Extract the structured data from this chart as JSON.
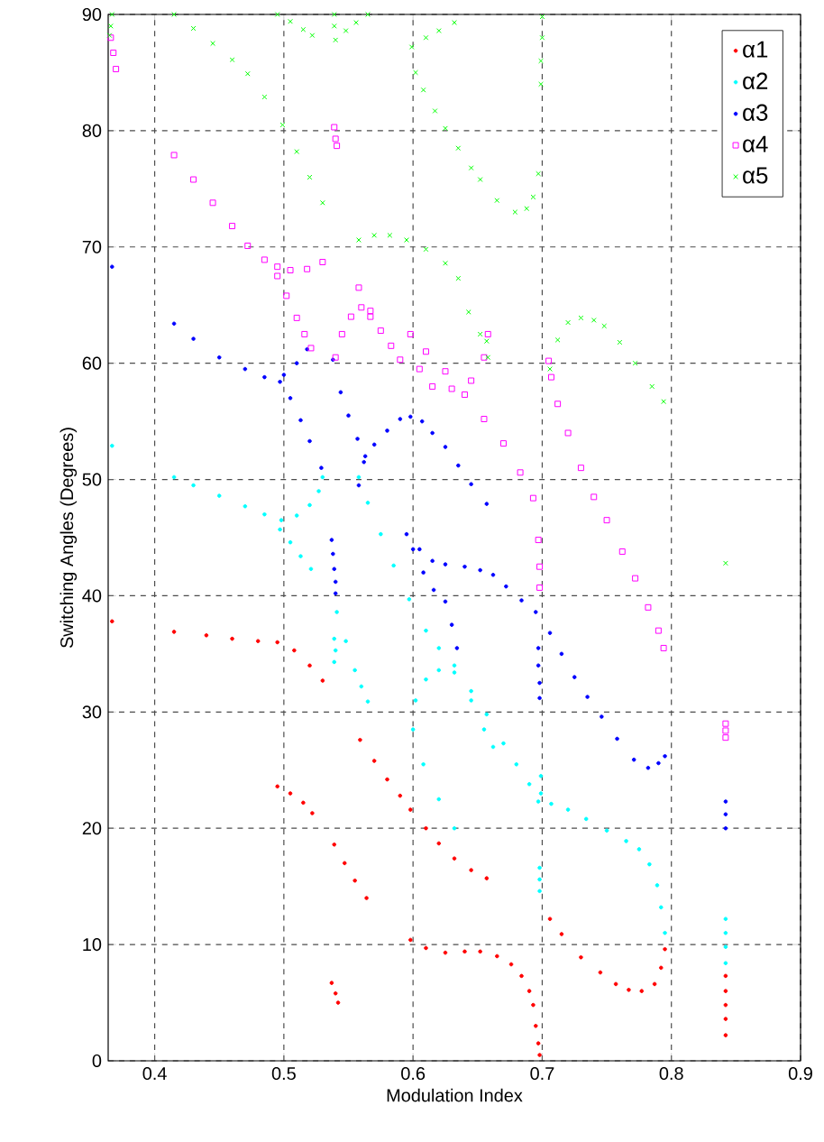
{
  "chart_data": {
    "type": "scatter",
    "xlabel": "Modulation Index",
    "ylabel": "Switching Angles (Degrees)",
    "xlim": [
      0.364,
      0.9
    ],
    "ylim": [
      0,
      90
    ],
    "xticks": [
      0.4,
      0.5,
      0.6,
      0.7,
      0.8,
      0.9
    ],
    "yticks": [
      0,
      10,
      20,
      30,
      40,
      50,
      60,
      70,
      80,
      90
    ],
    "grid": true,
    "legend": "top right",
    "series": [
      {
        "name": "α1",
        "color": "#ff0000",
        "marker": "circle",
        "x": [
          0.367,
          0.415,
          0.44,
          0.46,
          0.48,
          0.495,
          0.508,
          0.52,
          0.53,
          0.495,
          0.505,
          0.515,
          0.522,
          0.539,
          0.547,
          0.555,
          0.564,
          0.537,
          0.54,
          0.542,
          0.559,
          0.57,
          0.58,
          0.59,
          0.598,
          0.61,
          0.62,
          0.632,
          0.645,
          0.657,
          0.598,
          0.61,
          0.625,
          0.64,
          0.652,
          0.665,
          0.676,
          0.684,
          0.69,
          0.693,
          0.695,
          0.697,
          0.698,
          0.706,
          0.715,
          0.73,
          0.745,
          0.757,
          0.767,
          0.777,
          0.787,
          0.792,
          0.795,
          0.842,
          0.842,
          0.842,
          0.842,
          0.842
        ],
        "values": [
          37.8,
          36.9,
          36.6,
          36.3,
          36.1,
          36.0,
          35.3,
          34.0,
          32.7,
          23.6,
          23.0,
          22.2,
          21.3,
          18.6,
          17.0,
          15.5,
          14.0,
          6.7,
          5.8,
          5.0,
          27.6,
          25.8,
          24.2,
          22.8,
          21.6,
          20.0,
          18.7,
          17.4,
          16.4,
          15.7,
          10.4,
          9.7,
          9.3,
          9.4,
          9.4,
          9.0,
          8.3,
          7.3,
          6.0,
          4.8,
          3.0,
          1.5,
          0.5,
          12.2,
          10.9,
          8.9,
          7.6,
          6.6,
          6.1,
          6.0,
          6.6,
          8.0,
          9.6,
          7.3,
          6.0,
          4.8,
          3.6,
          2.2
        ]
      },
      {
        "name": "α2",
        "color": "#00ffff",
        "marker": "circle",
        "x": [
          0.367,
          0.415,
          0.43,
          0.45,
          0.47,
          0.485,
          0.498,
          0.51,
          0.52,
          0.527,
          0.53,
          0.497,
          0.505,
          0.513,
          0.521,
          0.539,
          0.54,
          0.539,
          0.541,
          0.548,
          0.555,
          0.56,
          0.565,
          0.558,
          0.565,
          0.575,
          0.585,
          0.597,
          0.61,
          0.62,
          0.632,
          0.645,
          0.657,
          0.67,
          0.68,
          0.69,
          0.697,
          0.632,
          0.62,
          0.608,
          0.6,
          0.602,
          0.61,
          0.62,
          0.632,
          0.645,
          0.655,
          0.662,
          0.699,
          0.699,
          0.698,
          0.698,
          0.698,
          0.707,
          0.72,
          0.734,
          0.75,
          0.765,
          0.775,
          0.783,
          0.789,
          0.792,
          0.795,
          0.842,
          0.842,
          0.842,
          0.842
        ],
        "values": [
          52.9,
          50.2,
          49.5,
          48.6,
          47.7,
          47.0,
          46.5,
          46.9,
          47.8,
          49.0,
          50.2,
          45.7,
          44.6,
          43.4,
          42.3,
          36.3,
          35.3,
          34.3,
          38.6,
          36.1,
          33.6,
          32.2,
          30.9,
          50.2,
          48.0,
          45.3,
          42.6,
          39.7,
          37.0,
          35.5,
          34.0,
          31.8,
          29.8,
          27.3,
          25.5,
          23.8,
          22.3,
          20.0,
          22.5,
          25.5,
          28.5,
          31.0,
          32.8,
          33.6,
          33.4,
          31.0,
          28.5,
          27.0,
          24.5,
          23.0,
          16.6,
          15.6,
          14.6,
          22.1,
          21.6,
          20.8,
          19.8,
          18.9,
          18.2,
          16.9,
          15.1,
          13.2,
          11.0,
          12.2,
          11.0,
          9.8,
          8.4
        ]
      },
      {
        "name": "α3",
        "color": "#0000ff",
        "marker": "circle",
        "x": [
          0.367,
          0.415,
          0.43,
          0.45,
          0.47,
          0.485,
          0.497,
          0.505,
          0.513,
          0.52,
          0.529,
          0.5,
          0.51,
          0.518,
          0.537,
          0.538,
          0.539,
          0.54,
          0.54,
          0.538,
          0.544,
          0.55,
          0.557,
          0.563,
          0.558,
          0.562,
          0.57,
          0.58,
          0.59,
          0.598,
          0.607,
          0.615,
          0.625,
          0.635,
          0.645,
          0.657,
          0.595,
          0.605,
          0.615,
          0.625,
          0.64,
          0.652,
          0.662,
          0.672,
          0.684,
          0.695,
          0.6,
          0.608,
          0.616,
          0.625,
          0.63,
          0.634,
          0.697,
          0.697,
          0.698,
          0.698,
          0.706,
          0.715,
          0.725,
          0.735,
          0.746,
          0.758,
          0.771,
          0.782,
          0.79,
          0.795,
          0.842,
          0.842,
          0.842
        ],
        "values": [
          68.3,
          63.4,
          62.1,
          60.5,
          59.5,
          58.8,
          58.4,
          57.0,
          55.1,
          53.3,
          51.0,
          59.0,
          60.0,
          61.2,
          44.8,
          43.6,
          42.3,
          41.2,
          40.2,
          60.3,
          57.5,
          55.5,
          53.5,
          52.0,
          49.5,
          51.5,
          53.0,
          54.2,
          55.2,
          55.4,
          55.0,
          54.0,
          52.8,
          51.2,
          49.6,
          47.9,
          45.3,
          44.0,
          43.0,
          42.7,
          42.5,
          42.2,
          41.8,
          40.8,
          39.6,
          38.6,
          44.0,
          42.0,
          40.5,
          39.5,
          37.5,
          35.5,
          35.5,
          34.0,
          32.5,
          31.2,
          36.8,
          35.0,
          33.0,
          31.3,
          29.6,
          27.7,
          25.9,
          25.2,
          25.6,
          26.2,
          22.3,
          21.2,
          20.0
        ]
      },
      {
        "name": "α4",
        "color": "#ff00ff",
        "marker": "square",
        "x": [
          0.366,
          0.368,
          0.37,
          0.539,
          0.54,
          0.541,
          0.415,
          0.43,
          0.445,
          0.46,
          0.472,
          0.485,
          0.495,
          0.505,
          0.518,
          0.53,
          0.495,
          0.502,
          0.51,
          0.516,
          0.521,
          0.54,
          0.545,
          0.552,
          0.56,
          0.567,
          0.558,
          0.567,
          0.575,
          0.583,
          0.59,
          0.598,
          0.61,
          0.625,
          0.64,
          0.655,
          0.67,
          0.683,
          0.693,
          0.697,
          0.698,
          0.698,
          0.605,
          0.615,
          0.63,
          0.645,
          0.655,
          0.658,
          0.705,
          0.707,
          0.712,
          0.72,
          0.73,
          0.74,
          0.75,
          0.762,
          0.772,
          0.782,
          0.79,
          0.794,
          0.842,
          0.842,
          0.842
        ],
        "values": [
          88.0,
          86.7,
          85.3,
          80.3,
          79.3,
          78.7,
          77.9,
          75.8,
          73.8,
          71.8,
          70.1,
          68.9,
          68.3,
          68.0,
          68.1,
          68.7,
          67.5,
          65.8,
          63.9,
          62.5,
          61.3,
          60.5,
          62.5,
          64.0,
          64.8,
          64.0,
          66.5,
          64.5,
          62.8,
          61.5,
          60.3,
          62.5,
          61.0,
          59.3,
          57.3,
          55.2,
          53.1,
          50.6,
          48.4,
          44.8,
          42.5,
          40.7,
          59.5,
          58.0,
          57.8,
          58.5,
          60.5,
          62.5,
          60.2,
          58.8,
          56.5,
          54.0,
          51.0,
          48.5,
          46.5,
          43.8,
          41.5,
          39.0,
          37.0,
          35.5,
          29.0,
          28.4,
          27.8
        ]
      },
      {
        "name": "α5",
        "color": "#00ff00",
        "marker": "cross",
        "x": [
          0.367,
          0.366,
          0.365,
          0.415,
          0.43,
          0.445,
          0.46,
          0.472,
          0.485,
          0.499,
          0.51,
          0.52,
          0.53,
          0.495,
          0.505,
          0.515,
          0.522,
          0.539,
          0.539,
          0.54,
          0.548,
          0.556,
          0.565,
          0.599,
          0.61,
          0.62,
          0.632,
          0.602,
          0.608,
          0.617,
          0.625,
          0.635,
          0.645,
          0.652,
          0.665,
          0.679,
          0.688,
          0.693,
          0.697,
          0.7,
          0.7,
          0.699,
          0.699,
          0.558,
          0.57,
          0.582,
          0.595,
          0.61,
          0.625,
          0.635,
          0.643,
          0.652,
          0.657,
          0.658,
          0.706,
          0.712,
          0.72,
          0.73,
          0.74,
          0.748,
          0.76,
          0.772,
          0.785,
          0.794,
          0.842
        ],
        "values": [
          90.0,
          89.0,
          88.2,
          90.0,
          88.8,
          87.5,
          86.1,
          84.9,
          82.9,
          80.5,
          78.2,
          76.0,
          73.8,
          90.0,
          89.4,
          88.7,
          88.2,
          90.0,
          89.0,
          87.8,
          88.6,
          89.3,
          90.0,
          87.2,
          88.0,
          88.6,
          89.3,
          85.0,
          83.5,
          81.7,
          80.2,
          78.5,
          76.8,
          75.8,
          74.0,
          73.0,
          73.3,
          74.3,
          76.3,
          89.8,
          88.0,
          86.0,
          84.0,
          70.6,
          71.0,
          71.0,
          70.6,
          69.8,
          68.6,
          67.3,
          64.4,
          62.5,
          61.9,
          60.5,
          59.5,
          62.0,
          63.5,
          63.9,
          63.7,
          63.2,
          61.8,
          60.0,
          58.0,
          56.7,
          42.8
        ]
      }
    ]
  }
}
